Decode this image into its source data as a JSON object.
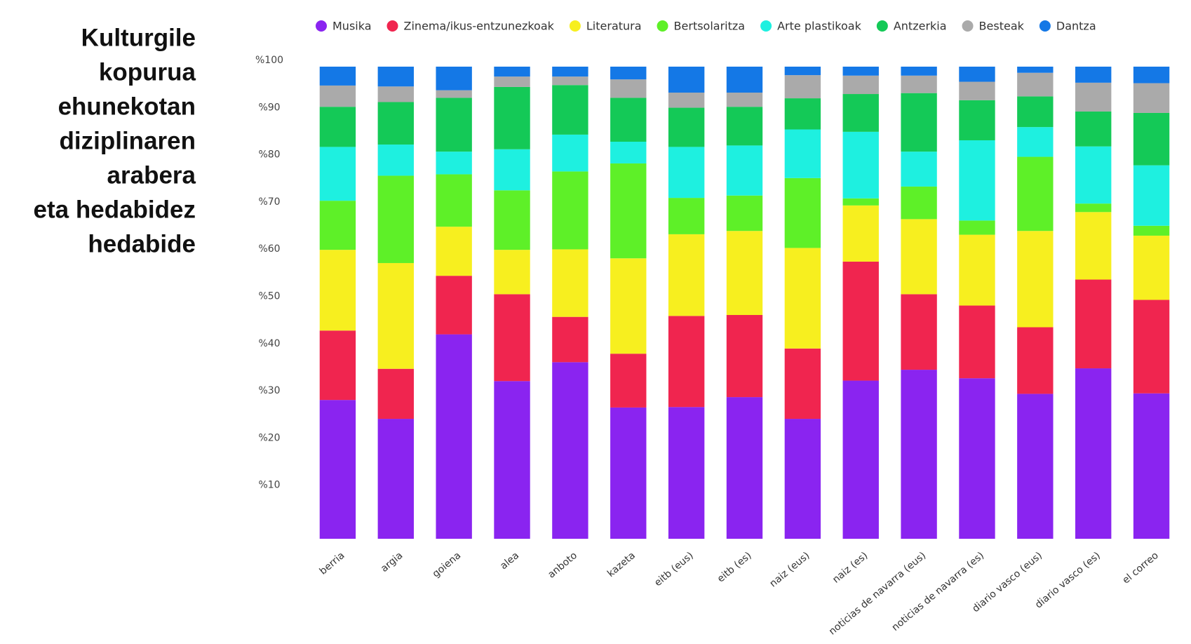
{
  "chart_data": {
    "type": "stacked_bar",
    "title": [
      "Kulturgile",
      "kopurua",
      "ehunekotan",
      "diziplinaren",
      "arabera",
      "eta hedabidez",
      "hedabide"
    ],
    "categories": [
      "berria",
      "argia",
      "goiena",
      "alea",
      "anboto",
      "kazeta",
      "eitb (eus)",
      "eitb (es)",
      "naiz (eus)",
      "naiz (es)",
      "noticias de navarra (eus)",
      "noticias de navarra (es)",
      "diario vasco (eus)",
      "diario vasco (es)",
      "el correo"
    ],
    "series": [
      {
        "name": "Musika",
        "color": "#8a24f0",
        "values": [
          29.4,
          25.4,
          43.3,
          33.4,
          37.4,
          27.8,
          27.9,
          30.0,
          25.4,
          33.5,
          35.8,
          34.0,
          30.7,
          36.1,
          30.8
        ]
      },
      {
        "name": "Zinema/ikus-entzunezkoak",
        "color": "#f0254f",
        "values": [
          14.7,
          10.6,
          12.4,
          18.4,
          9.6,
          11.4,
          19.3,
          17.4,
          14.9,
          25.2,
          16.0,
          15.4,
          14.1,
          18.8,
          19.8
        ]
      },
      {
        "name": "Literatura",
        "color": "#f7ef1f",
        "values": [
          17.1,
          22.4,
          10.4,
          9.4,
          14.3,
          20.2,
          17.3,
          17.8,
          21.3,
          11.9,
          15.9,
          15.0,
          20.4,
          14.3,
          13.6
        ]
      },
      {
        "name": "Bertsolaritza",
        "color": "#5ef028",
        "values": [
          10.4,
          18.5,
          11.1,
          12.6,
          16.5,
          20.1,
          7.7,
          7.5,
          14.8,
          1.5,
          6.9,
          3.0,
          15.7,
          1.8,
          2.1
        ]
      },
      {
        "name": "Arte plastikoak",
        "color": "#1ef0e0",
        "values": [
          11.4,
          6.6,
          4.8,
          8.7,
          7.8,
          4.6,
          10.8,
          10.6,
          10.3,
          14.1,
          7.4,
          17.0,
          6.3,
          12.1,
          12.8
        ]
      },
      {
        "name": "Antzerkia",
        "color": "#14c957",
        "values": [
          8.5,
          9.0,
          11.4,
          13.2,
          10.5,
          9.3,
          8.3,
          8.2,
          6.6,
          8.0,
          12.4,
          8.5,
          6.5,
          7.4,
          11.1
        ]
      },
      {
        "name": "Besteak",
        "color": "#aaaaaa",
        "values": [
          4.5,
          3.3,
          1.6,
          2.2,
          1.8,
          3.9,
          3.2,
          3.0,
          4.9,
          3.9,
          3.7,
          3.9,
          5.0,
          6.1,
          6.3
        ]
      },
      {
        "name": "Dantza",
        "color": "#1478e6",
        "values": [
          4.0,
          4.2,
          5.0,
          2.1,
          2.1,
          2.7,
          5.5,
          5.5,
          1.8,
          1.9,
          1.9,
          3.2,
          1.3,
          3.4,
          3.5
        ]
      }
    ],
    "ylim": [
      0,
      100
    ],
    "yticks": [
      {
        "value": 10,
        "label": "%10"
      },
      {
        "value": 20,
        "label": "%20"
      },
      {
        "value": 30,
        "label": "%30"
      },
      {
        "value": 40,
        "label": "%40"
      },
      {
        "value": 50,
        "label": "%50"
      },
      {
        "value": 60,
        "label": "%60"
      },
      {
        "value": 70,
        "label": "%70"
      },
      {
        "value": 80,
        "label": "%80"
      },
      {
        "value": 90,
        "label": "%90"
      },
      {
        "value": 100,
        "label": "%100"
      }
    ],
    "legend": "top",
    "grid": false
  }
}
